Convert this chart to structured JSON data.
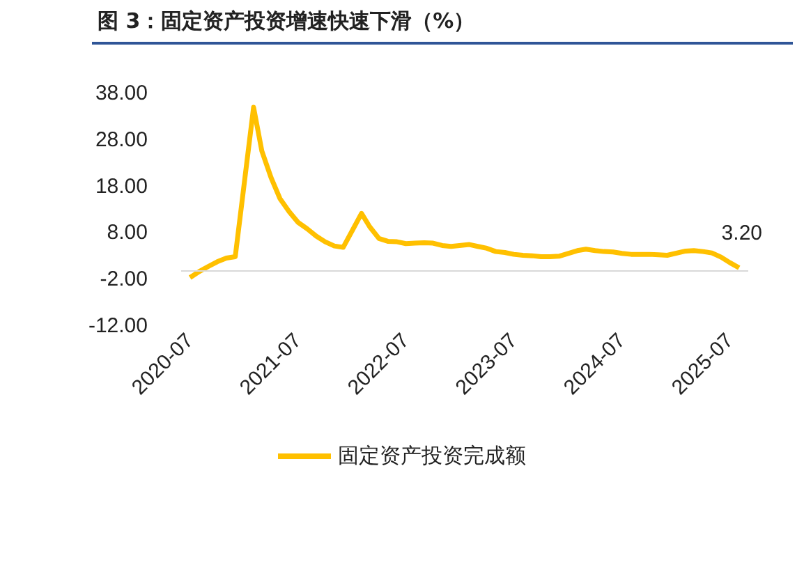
{
  "chart_data": {
    "type": "line",
    "title": "图 3：固定资产投资增速快速下滑（%）",
    "x": [
      "2020-07",
      "2020-08",
      "2020-09",
      "2020-10",
      "2020-11",
      "2020-12",
      "2021-02",
      "2021-03",
      "2021-04",
      "2021-05",
      "2021-06",
      "2021-07",
      "2021-08",
      "2021-09",
      "2021-10",
      "2021-11",
      "2021-12",
      "2022-02",
      "2022-03",
      "2022-04",
      "2022-05",
      "2022-06",
      "2022-07",
      "2022-08",
      "2022-09",
      "2022-10",
      "2022-11",
      "2022-12",
      "2023-02",
      "2023-03",
      "2023-04",
      "2023-05",
      "2023-06",
      "2023-07",
      "2023-08",
      "2023-09",
      "2023-10",
      "2023-11",
      "2023-12",
      "2024-02",
      "2024-03",
      "2024-04",
      "2024-05",
      "2024-06",
      "2024-07",
      "2024-08",
      "2024-09",
      "2024-10",
      "2024-11",
      "2024-12",
      "2025-02",
      "2025-03",
      "2025-04",
      "2025-05",
      "2025-06",
      "2025-07",
      "2025-08"
    ],
    "series": [
      {
        "name": "固定资产投资完成额",
        "color": "#ffc000",
        "values": [
          -1.6,
          -0.3,
          0.8,
          1.8,
          2.6,
          2.9,
          35.0,
          25.6,
          19.9,
          15.4,
          12.6,
          10.3,
          8.9,
          7.3,
          6.1,
          5.2,
          4.9,
          12.2,
          9.3,
          6.8,
          6.2,
          6.1,
          5.7,
          5.8,
          5.9,
          5.8,
          5.3,
          5.1,
          5.5,
          5.1,
          4.7,
          4.0,
          3.8,
          3.4,
          3.2,
          3.1,
          2.9,
          2.9,
          3.0,
          4.2,
          4.5,
          4.2,
          4.0,
          3.9,
          3.6,
          3.4,
          3.4,
          3.4,
          3.3,
          3.2,
          4.1,
          4.2,
          4.0,
          3.7,
          2.8,
          1.6,
          0.5
        ]
      }
    ],
    "xlim": [
      "2020-06",
      "2025-09"
    ],
    "xticks": [
      "2020-07",
      "2021-07",
      "2022-07",
      "2023-07",
      "2024-07",
      "2025-07"
    ],
    "ylim": [
      -12,
      38
    ],
    "yticks": [
      {
        "value": -12,
        "label": "-12.00"
      },
      {
        "value": -2,
        "label": "-2.00"
      },
      {
        "value": 8,
        "label": "8.00"
      },
      {
        "value": 18,
        "label": "18.00"
      },
      {
        "value": 28,
        "label": "28.00"
      },
      {
        "value": 38,
        "label": "38.00"
      }
    ],
    "ref_lines": [
      {
        "axis": "y",
        "value": 0,
        "color": "#d9d9d9"
      }
    ],
    "annotations": [
      "3.20"
    ],
    "legend": "bottom",
    "marker": "none",
    "line_style": "solid"
  }
}
